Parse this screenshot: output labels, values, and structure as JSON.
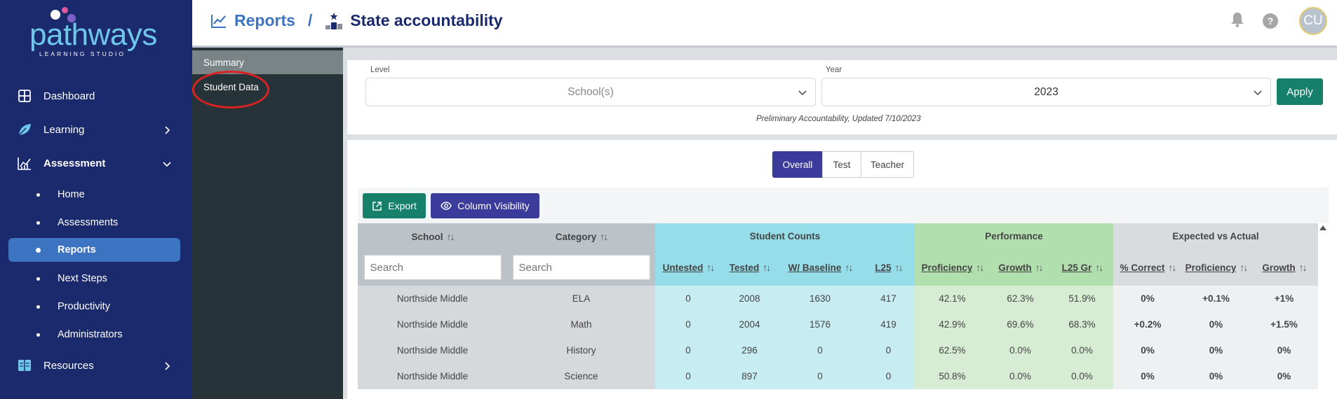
{
  "brand": {
    "name": "pathways",
    "subtitle": "LEARNING STUDIO"
  },
  "sidebar": {
    "items": [
      {
        "label": "Dashboard",
        "icon": "grid-icon"
      },
      {
        "label": "Learning",
        "icon": "leaf-icon"
      },
      {
        "label": "Assessment",
        "icon": "chart-icon"
      },
      {
        "label": "Resources",
        "icon": "book-icon"
      }
    ],
    "assessment_sub": [
      "Home",
      "Assessments",
      "Reports",
      "Next Steps",
      "Productivity",
      "Administrators"
    ],
    "active_sub": "Reports"
  },
  "header": {
    "crumb1": "Reports",
    "separator": "/",
    "crumb2": "State accountability",
    "avatar": "CU",
    "help": "?"
  },
  "subnav": {
    "items": [
      "Summary",
      "Student Data"
    ],
    "active": "Summary"
  },
  "filters": {
    "level_label": "Level",
    "level_value": "School(s)",
    "year_label": "Year",
    "year_value": "2023",
    "apply": "Apply",
    "note": "Preliminary Accountability, Updated 7/10/2023"
  },
  "tabs": {
    "items": [
      "Overall",
      "Test",
      "Teacher"
    ],
    "active": "Overall"
  },
  "toolbar": {
    "export": "Export",
    "column_visibility": "Column Visibility"
  },
  "table": {
    "groups": {
      "school": "School",
      "category": "Category",
      "student_counts": "Student Counts",
      "performance": "Performance",
      "expected": "Expected vs Actual"
    },
    "columns": {
      "untested": "Untested",
      "tested": "Tested",
      "baseline": "W/ Baseline",
      "l25": "L25",
      "proficiency": "Proficiency",
      "growth": "Growth",
      "l25gr": "L25 Gr",
      "pct_correct": "% Correct",
      "ev_proficiency": "Proficiency",
      "ev_growth": "Growth"
    },
    "search_placeholder": "Search",
    "sort_glyph": "↑↓",
    "rows": [
      {
        "school": "Northside Middle",
        "category": "ELA",
        "untested": "0",
        "tested": "2008",
        "baseline": "1630",
        "l25": "417",
        "proficiency": "42.1%",
        "growth": "62.3%",
        "l25gr": "51.9%",
        "pct_correct": "0%",
        "ev_proficiency": "+0.1%",
        "ev_growth": "+1%"
      },
      {
        "school": "Northside Middle",
        "category": "Math",
        "untested": "0",
        "tested": "2004",
        "baseline": "1576",
        "l25": "419",
        "proficiency": "42.9%",
        "growth": "69.6%",
        "l25gr": "68.3%",
        "pct_correct": "+0.2%",
        "ev_proficiency": "0%",
        "ev_growth": "+1.5%"
      },
      {
        "school": "Northside Middle",
        "category": "History",
        "untested": "0",
        "tested": "296",
        "baseline": "0",
        "l25": "0",
        "proficiency": "62.5%",
        "growth": "0.0%",
        "l25gr": "0.0%",
        "pct_correct": "0%",
        "ev_proficiency": "0%",
        "ev_growth": "0%"
      },
      {
        "school": "Northside Middle",
        "category": "Science",
        "untested": "0",
        "tested": "897",
        "baseline": "0",
        "l25": "0",
        "proficiency": "50.8%",
        "growth": "0.0%",
        "l25gr": "0.0%",
        "pct_correct": "0%",
        "ev_proficiency": "0%",
        "ev_growth": "0%"
      }
    ]
  },
  "colors": {
    "sidebar": "#1a2a6c",
    "active": "#3d74c2",
    "teal": "#16806b",
    "indigo": "#3b3b9b",
    "positive": "#3a9a3a"
  }
}
